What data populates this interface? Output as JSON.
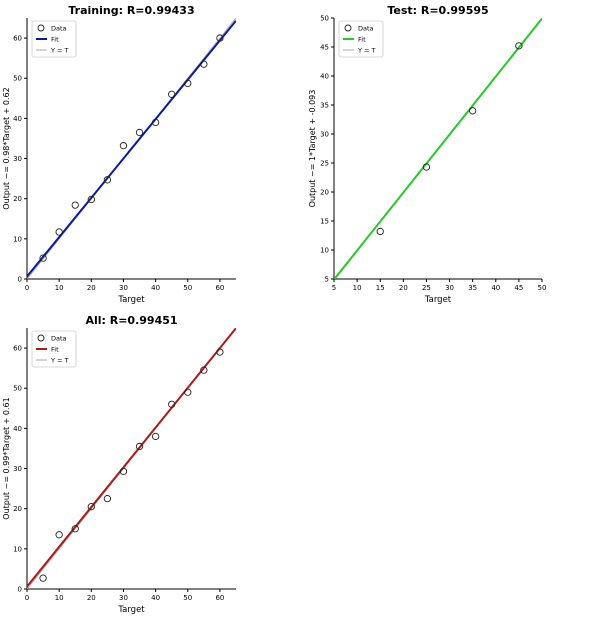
{
  "chart_data": [
    {
      "type": "scatter",
      "title": "Training: R=0.99433",
      "xlabel": "Target",
      "ylabel": "Output ~= 0.98*Target + 0.62",
      "xlim": [
        0,
        65
      ],
      "ylim": [
        0,
        65
      ],
      "xticks": [
        0,
        10,
        20,
        30,
        40,
        50,
        60
      ],
      "yticks": [
        0,
        10,
        20,
        30,
        40,
        50,
        60
      ],
      "fit_color": "#0a1aa0",
      "fit": {
        "slope": 0.98,
        "intercept": 0.62
      },
      "legend": {
        "position": "top-left",
        "entries": [
          "Data",
          "Fit",
          "Y = T"
        ]
      },
      "series": [
        {
          "name": "Data",
          "points": [
            [
              5,
              5.2
            ],
            [
              10,
              11.7
            ],
            [
              15,
              18.4
            ],
            [
              20,
              19.8
            ],
            [
              25,
              24.7
            ],
            [
              30,
              33.2
            ],
            [
              35,
              36.5
            ],
            [
              40,
              39
            ],
            [
              45,
              46
            ],
            [
              50,
              48.7
            ],
            [
              55,
              53.5
            ],
            [
              60,
              60
            ]
          ]
        }
      ]
    },
    {
      "type": "scatter",
      "title": "Test: R=0.99595",
      "xlabel": "Target",
      "ylabel": "Output ~= 1*Target + -0.093",
      "xlim": [
        5,
        50
      ],
      "ylim": [
        5,
        50
      ],
      "xticks": [
        5,
        10,
        15,
        20,
        25,
        30,
        35,
        40,
        45,
        50
      ],
      "yticks": [
        5,
        10,
        15,
        20,
        25,
        30,
        35,
        40,
        45,
        50
      ],
      "fit_color": "#22cc22",
      "fit": {
        "slope": 1,
        "intercept": -0.093
      },
      "legend": {
        "position": "top-left",
        "entries": [
          "Data",
          "Fit",
          "Y = T"
        ]
      },
      "series": [
        {
          "name": "Data",
          "points": [
            [
              15,
              13.2
            ],
            [
              25,
              24.3
            ],
            [
              35,
              34
            ],
            [
              45,
              45.2
            ]
          ]
        }
      ]
    },
    {
      "type": "scatter",
      "title": "All: R=0.99451",
      "xlabel": "Target",
      "ylabel": "Output ~= 0.99*Target + 0.61",
      "xlim": [
        0,
        65
      ],
      "ylim": [
        0,
        65
      ],
      "xticks": [
        0,
        10,
        20,
        30,
        40,
        50,
        60
      ],
      "yticks": [
        0,
        10,
        20,
        30,
        40,
        50,
        60
      ],
      "fit_color": "#b01818",
      "fit": {
        "slope": 0.99,
        "intercept": 0.61
      },
      "legend": {
        "position": "top-left",
        "entries": [
          "Data",
          "Fit",
          "Y = T"
        ]
      },
      "series": [
        {
          "name": "Data",
          "points": [
            [
              5,
              2.7
            ],
            [
              10,
              13.5
            ],
            [
              15,
              15
            ],
            [
              20,
              20.5
            ],
            [
              25,
              22.5
            ],
            [
              30,
              29.3
            ],
            [
              35,
              35.5
            ],
            [
              40,
              38
            ],
            [
              45,
              46
            ],
            [
              50,
              49
            ],
            [
              55,
              54.5
            ],
            [
              60,
              59
            ]
          ]
        }
      ]
    }
  ]
}
